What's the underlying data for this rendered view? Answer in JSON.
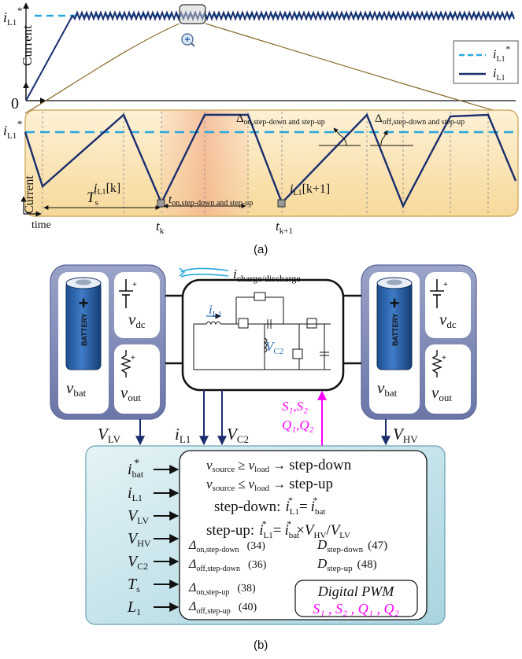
{
  "panel_a": {
    "ref_label": "i",
    "ref_sub": "L1",
    "ref_star": "*",
    "ylabel": "Current",
    "zero_label": "0",
    "time_label": "time",
    "legend": [
      {
        "main": "i",
        "sub": "L1",
        "star": "*",
        "color": "#29a8e0",
        "style": "dashed"
      },
      {
        "main": "i",
        "sub": "L1",
        "star": "",
        "color": "#1a2e6e",
        "style": "solid"
      }
    ],
    "zoom": {
      "ylabel": "Current",
      "ref_main": "i",
      "ref_sub": "L1",
      "ref_star": "*",
      "ts_main": "T",
      "ts_sub": "s",
      "sample_k_main": "i",
      "sample_k_sub": "L1",
      "sample_k_idx": "[k]",
      "sample_k1_main": "i",
      "sample_k1_sub": "L1",
      "sample_k1_idx": "[k+1]",
      "ton_main": "t",
      "ton_sub": "on,step-down and step-up",
      "don_main": "Δ",
      "don_sub": "on,step-down and step-up",
      "doff_main": "Δ",
      "doff_sub": "off,step-down and step-up",
      "time": "time",
      "tk_main": "t",
      "tk_sub": "k",
      "tk1_main": "t",
      "tk1_sub": "k+1"
    },
    "caption": "(a)"
  },
  "panel_b": {
    "charge_main": "i",
    "charge_sub": "charge/discharge",
    "il1_main": "i",
    "il1_sub": "L1",
    "vc2_main": "V",
    "vc2_sub": "C2",
    "left_source": {
      "vdc_main": "v",
      "vdc_sub": "dc",
      "vbat_main": "v",
      "vbat_sub": "bat",
      "vout_main": "v",
      "vout_sub": "out",
      "battery_word": "BATTERY"
    },
    "right_source": {
      "vdc_main": "v",
      "vdc_sub": "dc",
      "vbat_main": "v",
      "vbat_sub": "bat",
      "vout_main": "v",
      "vout_sub": "out",
      "battery_word": "BATTERY"
    },
    "meas": {
      "vlv_main": "V",
      "vlv_sub": "LV",
      "il1_main": "i",
      "il1_sub": "L1",
      "vc2_main": "V",
      "vc2_sub": "C2",
      "vhv_main": "V",
      "vhv_sub": "HV",
      "switch_line1": "S₁,S₂",
      "switch_line2": "Q₁,Q₂"
    },
    "inputs": [
      {
        "main": "i",
        "sub": "bat",
        "star": "*"
      },
      {
        "main": "i",
        "sub": "L1",
        "star": ""
      },
      {
        "main": "V",
        "sub": "LV",
        "star": ""
      },
      {
        "main": "V",
        "sub": "HV",
        "star": ""
      },
      {
        "main": "V",
        "sub": "C2",
        "star": ""
      },
      {
        "main": "T",
        "sub": "s",
        "star": ""
      },
      {
        "main": "L",
        "sub": "1",
        "star": ""
      }
    ],
    "rule1": {
      "a": "v",
      "a_sub": "source",
      "op": "≥",
      "b": "v",
      "b_sub": "load",
      "arrow": "→",
      "mode": "step-down"
    },
    "rule2": {
      "a": "v",
      "a_sub": "source",
      "op": "≤",
      "b": "v",
      "b_sub": "load",
      "arrow": "→",
      "mode": "step-up"
    },
    "eq1": {
      "prefix": "step-down:",
      "lhs": "i",
      "lhs_sub": "L1",
      "eq": "=",
      "rhs": "i",
      "rhs_sub": "bat"
    },
    "eq2": {
      "prefix": "step-up:",
      "lhs": "i",
      "lhs_sub": "L1",
      "eq": "=",
      "rhs": "i",
      "rhs_sub": "bat",
      "times": "×",
      "v1": "V",
      "v1_sub": "HV",
      "slash": "/",
      "v2": "V",
      "v2_sub": "LV"
    },
    "deltas": [
      {
        "main": "Δ",
        "sub": "on,step-down",
        "ref": "(34)"
      },
      {
        "main": "Δ",
        "sub": "off,step-down",
        "ref": "(36)"
      },
      {
        "main": "Δ",
        "sub": "on,step-up",
        "ref": "(38)"
      },
      {
        "main": "Δ",
        "sub": "off,step-up",
        "ref": "(40)"
      }
    ],
    "duties": [
      {
        "main": "D",
        "sub": "step-down",
        "ref": "(47)"
      },
      {
        "main": "D",
        "sub": "step-up",
        "ref": "(48)"
      }
    ],
    "pwm_title": "Digital PWM",
    "pwm_outputs": "S₁ , S₂ , Q₁ , Q₂",
    "caption": "(b)"
  },
  "colors": {
    "ref": "#29a8e0",
    "current": "#1a2e6e",
    "magenta": "#ff00ff",
    "zoom_fill": "#fbe7bf",
    "panel_blue": "#7e89b8",
    "ctrl_fill": "#bfe2ea"
  }
}
